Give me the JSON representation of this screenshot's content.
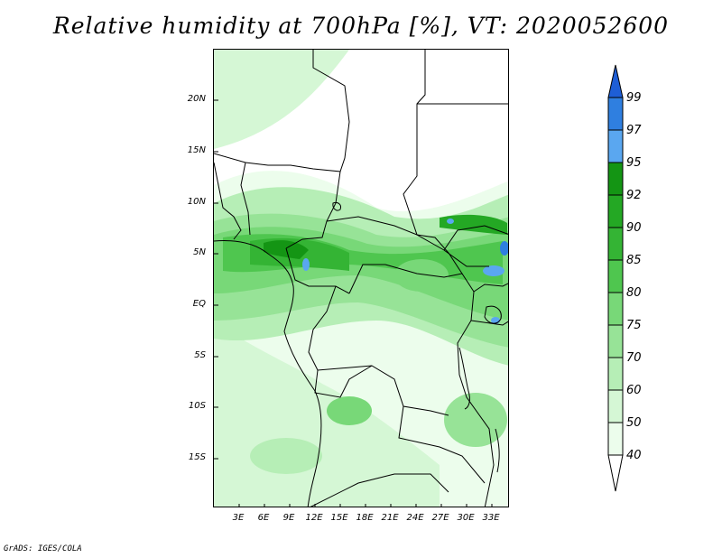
{
  "title": "Relative humidity at 700hPa [%], VT: 2020052600",
  "credit": "GrADS: IGES/COLA",
  "map": {
    "lat_labels": [
      "20N",
      "15N",
      "10N",
      "5N",
      "EQ",
      "5S",
      "10S",
      "15S"
    ],
    "lon_labels": [
      "3E",
      "6E",
      "9E",
      "12E",
      "15E",
      "18E",
      "21E",
      "24E",
      "27E",
      "30E",
      "33E"
    ]
  },
  "legend": {
    "labels": [
      "99",
      "97",
      "95",
      "92",
      "90",
      "85",
      "80",
      "75",
      "70",
      "60",
      "50",
      "40"
    ],
    "colors": [
      "#1e5ed6",
      "#2f7fe0",
      "#5aa7f0",
      "#149514",
      "#24a824",
      "#34b434",
      "#4fc64f",
      "#78d878",
      "#97e397",
      "#b6eeb6",
      "#d5f7d5",
      "#ecfdec"
    ]
  }
}
